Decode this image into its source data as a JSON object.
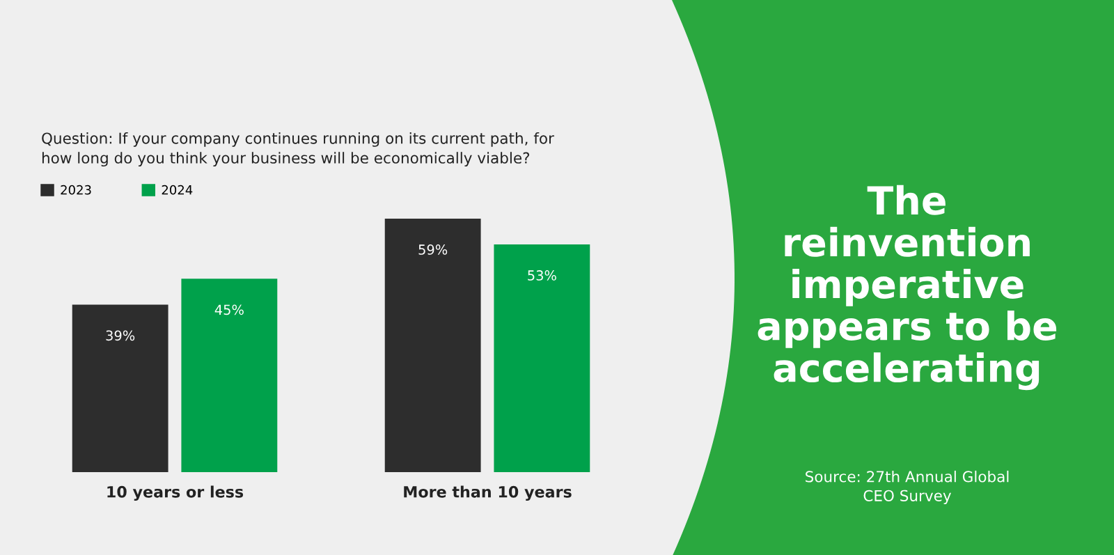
{
  "chart_data": {
    "type": "bar",
    "title": "The reinvention imperative appears to be accelerating",
    "subtitle": "Question: If your company continues running on its current path, for how long do you think your business will be economically viable?",
    "categories": [
      "10 years or less",
      "More than 10 years"
    ],
    "series": [
      {
        "name": "2023",
        "color": "#2d2d2d",
        "values": [
          39,
          59
        ],
        "value_labels": [
          "39%",
          "59%"
        ]
      },
      {
        "name": "2024",
        "color": "#00a14b",
        "values": [
          45,
          53
        ],
        "value_labels": [
          "45%",
          "53%"
        ]
      }
    ],
    "legend": "top left",
    "annotations": [
      "Source: 27th Annual Global CEO Survey"
    ]
  }
}
